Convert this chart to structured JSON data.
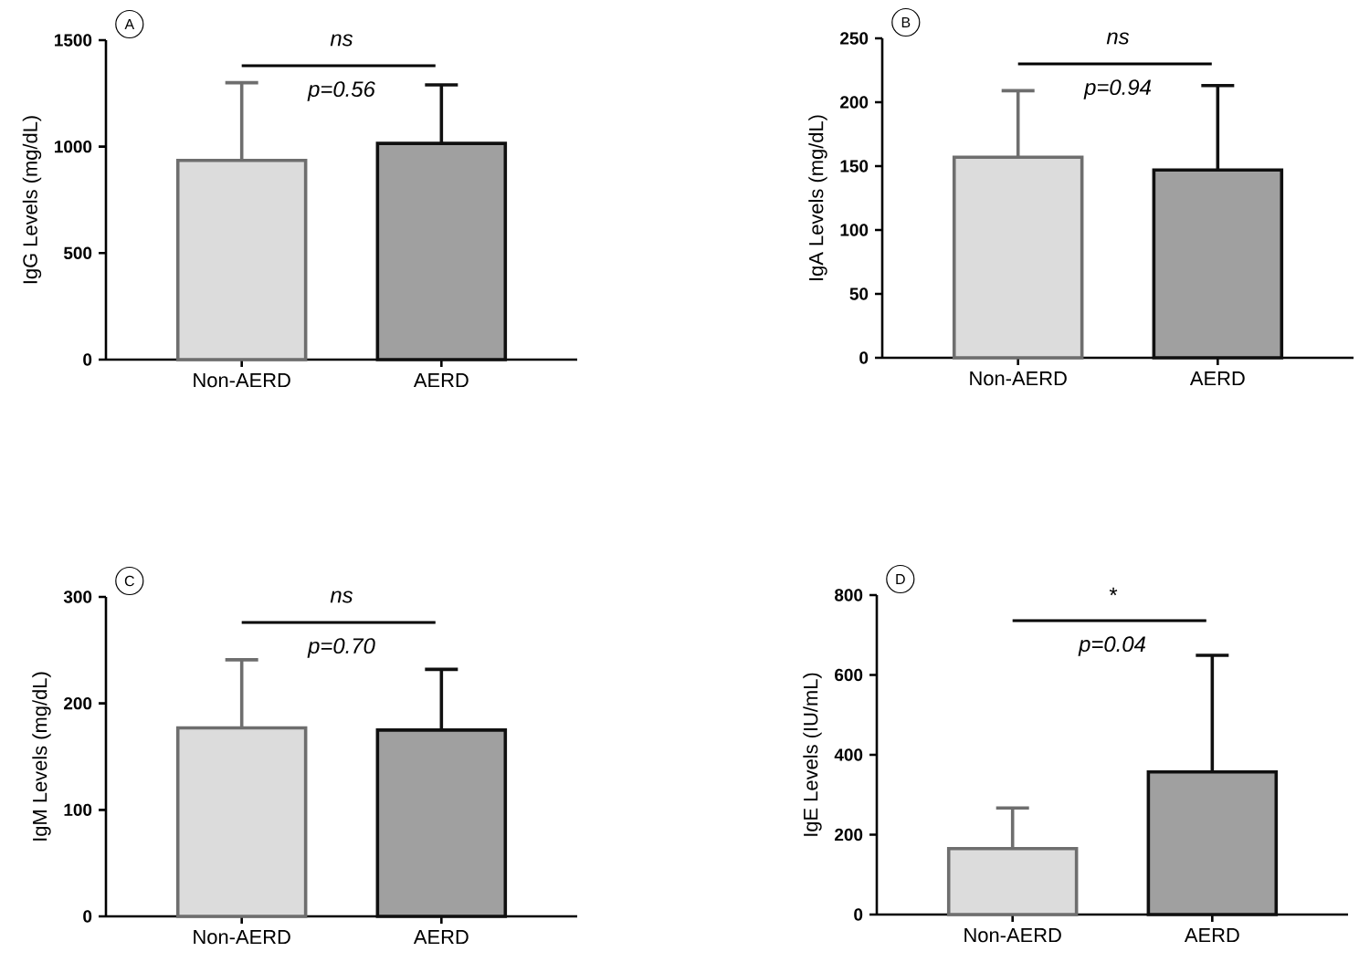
{
  "chart_data": [
    {
      "type": "bar",
      "title": "A",
      "ylabel": "IgG Levels (mg/dL)",
      "categories": [
        "Non-AERD",
        "AERD"
      ],
      "values": [
        935,
        1015
      ],
      "errors": [
        365,
        275
      ],
      "colors": [
        "#dcdcdc",
        "#a0a0a0"
      ],
      "ylim": [
        0,
        1500
      ],
      "yticks": [
        0,
        500,
        1000,
        1500
      ],
      "annotations": [
        "ns",
        "p=0.56"
      ]
    },
    {
      "type": "bar",
      "title": "B",
      "ylabel": "IgA Levels (mg/dL)",
      "categories": [
        "Non-AERD",
        "AERD"
      ],
      "values": [
        157,
        147
      ],
      "errors": [
        52,
        66
      ],
      "colors": [
        "#dcdcdc",
        "#a0a0a0"
      ],
      "ylim": [
        0,
        250
      ],
      "yticks": [
        0,
        50,
        100,
        150,
        200,
        250
      ],
      "annotations": [
        "ns",
        "p=0.94"
      ]
    },
    {
      "type": "bar",
      "title": "C",
      "ylabel": "IgM Levels (mg/dL)",
      "categories": [
        "Non-AERD",
        "AERD"
      ],
      "values": [
        177,
        175
      ],
      "errors": [
        64,
        57
      ],
      "colors": [
        "#dcdcdc",
        "#a0a0a0"
      ],
      "ylim": [
        0,
        300
      ],
      "yticks": [
        0,
        100,
        200,
        300
      ],
      "annotations": [
        "ns",
        "p=0.70"
      ]
    },
    {
      "type": "bar",
      "title": "D",
      "ylabel": "IgE Levels (IU/mL)",
      "categories": [
        "Non-AERD",
        "AERD"
      ],
      "values": [
        165,
        357
      ],
      "errors": [
        102,
        292
      ],
      "colors": [
        "#dcdcdc",
        "#a0a0a0"
      ],
      "ylim": [
        0,
        800
      ],
      "yticks": [
        0,
        200,
        400,
        600,
        800
      ],
      "annotations": [
        "*",
        "p=0.04"
      ]
    }
  ]
}
